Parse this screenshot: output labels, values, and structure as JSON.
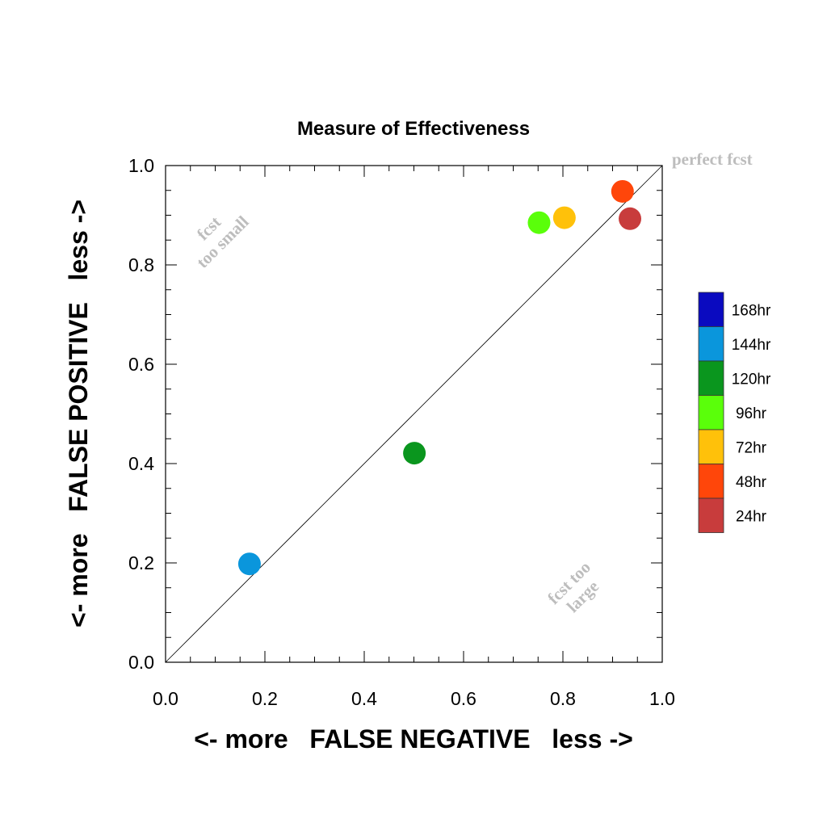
{
  "chart_data": {
    "type": "scatter",
    "title": "Measure of Effectiveness",
    "xlabel": "<- more   FALSE NEGATIVE   less ->",
    "ylabel": "<- more   FALSE POSITIVE   less ->",
    "xlim": [
      0.0,
      1.0
    ],
    "ylim": [
      0.0,
      1.0
    ],
    "x_ticks": [
      "0.0",
      "0.2",
      "0.4",
      "0.6",
      "0.8",
      "1.0"
    ],
    "y_ticks": [
      "0.0",
      "0.2",
      "0.4",
      "0.6",
      "0.8",
      "1.0"
    ],
    "grid": false,
    "reference_line": "diagonal y = x",
    "legend_position": "right",
    "legend": [
      {
        "label": "168hr",
        "color": "#0a0ac0"
      },
      {
        "label": "144hr",
        "color": "#0a96dc"
      },
      {
        "label": "120hr",
        "color": "#0a961e"
      },
      {
        "label": "96hr",
        "color": "#5aff0a"
      },
      {
        "label": "72hr",
        "color": "#ffc10a"
      },
      {
        "label": "48hr",
        "color": "#ff460a"
      },
      {
        "label": "24hr",
        "color": "#c83c3c"
      }
    ],
    "points": [
      {
        "series": "144hr",
        "x": 0.169,
        "y": 0.198,
        "color": "#0a96dc"
      },
      {
        "series": "120hr",
        "x": 0.501,
        "y": 0.421,
        "color": "#0a961e"
      },
      {
        "series": "96hr",
        "x": 0.752,
        "y": 0.885,
        "color": "#5aff0a"
      },
      {
        "series": "72hr",
        "x": 0.803,
        "y": 0.895,
        "color": "#ffc10a"
      },
      {
        "series": "48hr",
        "x": 0.92,
        "y": 0.948,
        "color": "#ff460a"
      },
      {
        "series": "24hr",
        "x": 0.935,
        "y": 0.893,
        "color": "#c83c3c"
      }
    ],
    "annotations": {
      "perfect": "perfect fcst",
      "too_small_line1": "fcst",
      "too_small_line2": "too small",
      "too_large_line1": "fcst too",
      "too_large_line2": "large"
    }
  }
}
